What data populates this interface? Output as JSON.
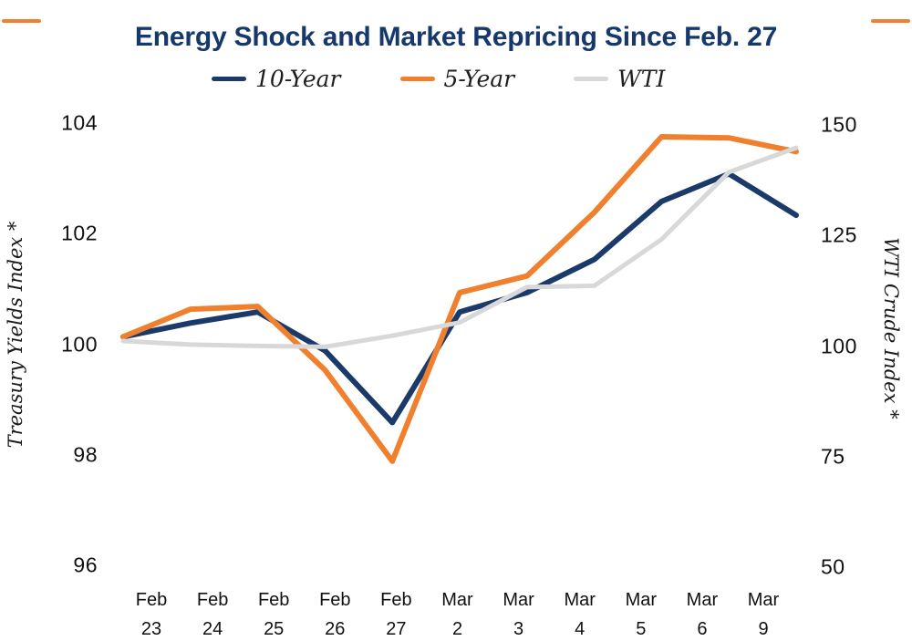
{
  "title": "Energy Shock and Market Repricing Since Feb. 27",
  "colors": {
    "navy": "#1b3a69",
    "orange": "#f0802e",
    "gray": "#d8d8d8",
    "title_text": "#16386b"
  },
  "legend": {
    "items": [
      {
        "label": "10-Year"
      },
      {
        "label": "5-Year"
      },
      {
        "label": "WTI"
      }
    ]
  },
  "chart_data": {
    "type": "line",
    "grid": false,
    "legend_position": "top",
    "categories": [
      {
        "month": "Feb",
        "day": "23"
      },
      {
        "month": "Feb",
        "day": "24"
      },
      {
        "month": "Feb",
        "day": "25"
      },
      {
        "month": "Feb",
        "day": "26"
      },
      {
        "month": "Feb",
        "day": "27"
      },
      {
        "month": "Mar",
        "day": "2"
      },
      {
        "month": "Mar",
        "day": "3"
      },
      {
        "month": "Mar",
        "day": "4"
      },
      {
        "month": "Mar",
        "day": "5"
      },
      {
        "month": "Mar",
        "day": "6"
      },
      {
        "month": "Mar",
        "day": "9"
      }
    ],
    "left_axis": {
      "title": "Treasury Yields Index *",
      "ticks": [
        "104",
        "102",
        "100",
        "98",
        "96"
      ],
      "range": [
        96,
        104
      ]
    },
    "right_axis": {
      "title": "WTI Crude Index *",
      "ticks": [
        "150",
        "125",
        "100",
        "75",
        "50"
      ],
      "range": [
        50,
        150
      ]
    },
    "series": [
      {
        "name": "10-Year",
        "axis": "left",
        "color": "#1b3a69",
        "values": [
          100.1,
          100.35,
          100.55,
          99.85,
          98.55,
          100.55,
          100.9,
          101.5,
          102.55,
          103.05,
          102.3
        ]
      },
      {
        "name": "5-Year",
        "axis": "left",
        "color": "#f0802e",
        "values": [
          100.1,
          100.6,
          100.65,
          99.5,
          97.85,
          100.9,
          101.2,
          102.35,
          103.72,
          103.7,
          103.45
        ]
      },
      {
        "name": "WTI",
        "axis": "right",
        "color": "#d8d8d8",
        "values": [
          100.3,
          99.5,
          99.2,
          99.0,
          101.5,
          104.5,
          112.5,
          112.8,
          123.3,
          138.5,
          144.0
        ]
      }
    ]
  }
}
